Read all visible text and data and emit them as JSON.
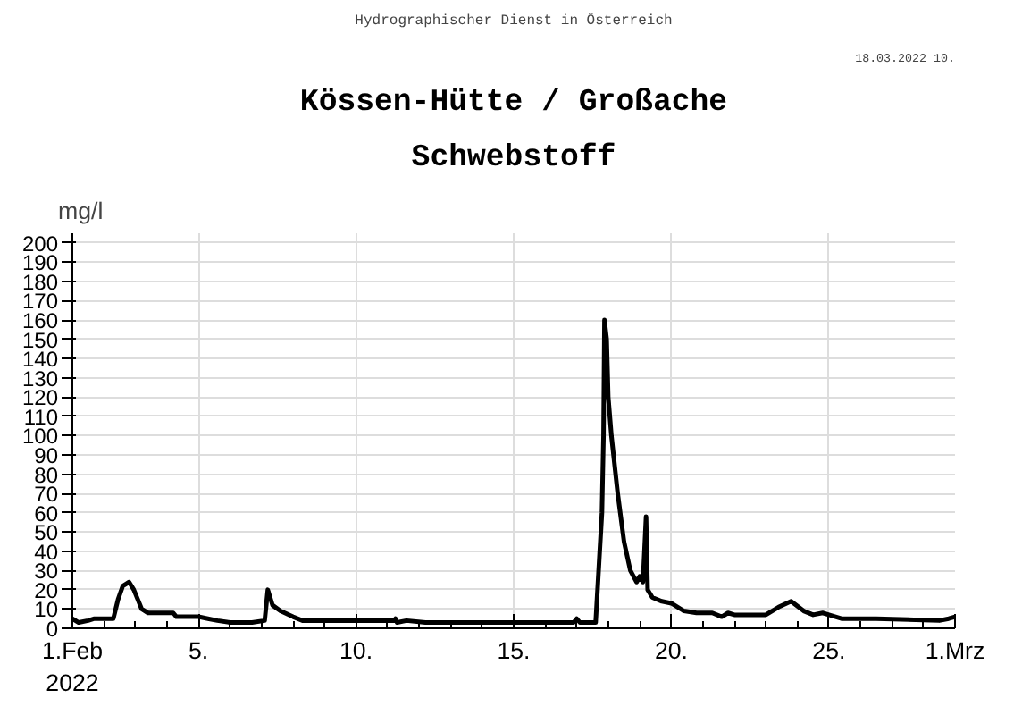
{
  "chart_data": {
    "type": "line",
    "title": "Kössen-Hütte / Großache",
    "subtitle": "Schwebstoff",
    "ylabel": "mg/l",
    "annotations": [
      "Hydrographischer Dienst in Österreich",
      "18.03.2022 10."
    ],
    "x": [
      "2022-02-01T00:00",
      "2022-02-01T04:48",
      "2022-02-01T12:00",
      "2022-02-01T16:48",
      "2022-02-02T07:12",
      "2022-02-02T10:48",
      "2022-02-02T14:24",
      "2022-02-02T19:12",
      "2022-02-02T22:48",
      "2022-02-03T04:48",
      "2022-02-03T09:36",
      "2022-02-04T04:48",
      "2022-02-04T07:12",
      "2022-02-05T00:00",
      "2022-02-05T07:12",
      "2022-02-05T14:24",
      "2022-02-06T00:00",
      "2022-02-06T16:48",
      "2022-02-07T02:24",
      "2022-02-07T04:48",
      "2022-02-07T08:24",
      "2022-02-07T14:24",
      "2022-02-08T00:00",
      "2022-02-08T07:12",
      "2022-02-11T04:48",
      "2022-02-11T06:00",
      "2022-02-11T07:12",
      "2022-02-11T14:24",
      "2022-02-12T04:48",
      "2022-02-16T00:00",
      "2022-02-16T21:36",
      "2022-02-17T00:00",
      "2022-02-17T02:24",
      "2022-02-17T14:24",
      "2022-02-17T19:12",
      "2022-02-17T20:24",
      "2022-02-17T21:07",
      "2022-02-17T22:48",
      "2022-02-18T00:00",
      "2022-02-18T02:24",
      "2022-02-18T07:12",
      "2022-02-18T12:00",
      "2022-02-18T16:48",
      "2022-02-18T21:36",
      "2022-02-19T00:00",
      "2022-02-19T02:24",
      "2022-02-19T04:48",
      "2022-02-19T06:00",
      "2022-02-19T09:36",
      "2022-02-19T16:48",
      "2022-02-20T00:00",
      "2022-02-20T09:36",
      "2022-02-20T19:12",
      "2022-02-21T07:12",
      "2022-02-21T14:24",
      "2022-02-21T19:12",
      "2022-02-22T00:00",
      "2022-02-23T00:00",
      "2022-02-23T09:36",
      "2022-02-23T19:12",
      "2022-02-24T04:48",
      "2022-02-24T12:00",
      "2022-02-24T19:12",
      "2022-02-25T00:00",
      "2022-02-25T09:36",
      "2022-02-26T12:00",
      "2022-02-28T12:00",
      "2022-02-28T19:12",
      "2022-03-01T00:00"
    ],
    "series": [
      {
        "color": "#000000",
        "values": [
          5,
          3,
          4,
          5,
          5,
          15,
          22,
          24,
          20,
          10,
          8,
          8,
          6,
          6,
          5,
          4,
          3,
          3,
          4,
          20,
          12,
          9,
          6,
          4,
          4,
          5,
          3,
          4,
          3,
          3,
          3,
          5,
          3,
          3,
          60,
          100,
          160,
          150,
          120,
          100,
          70,
          45,
          30,
          24,
          27,
          24,
          58,
          20,
          16,
          14,
          13,
          9,
          8,
          8,
          6,
          8,
          7,
          7,
          11,
          14,
          9,
          7,
          8,
          7,
          5,
          5,
          4,
          5,
          6
        ]
      }
    ],
    "xlim": [
      "2022-02-01",
      "2022-03-01"
    ],
    "xticks": [
      {
        "value": "2022-02-01",
        "label": "1.Feb\n2022"
      },
      {
        "value": "2022-02-05",
        "label": "5."
      },
      {
        "value": "2022-02-10",
        "label": "10."
      },
      {
        "value": "2022-02-15",
        "label": "15."
      },
      {
        "value": "2022-02-20",
        "label": "20."
      },
      {
        "value": "2022-02-25",
        "label": "25."
      },
      {
        "value": "2022-03-01",
        "label": "1.Mrz"
      }
    ],
    "ylim": [
      0,
      205
    ],
    "yticks": [
      0,
      10,
      20,
      30,
      40,
      50,
      60,
      70,
      80,
      90,
      100,
      110,
      120,
      130,
      140,
      150,
      160,
      170,
      180,
      190,
      200
    ],
    "grid": true,
    "marker": "none",
    "line_style": "solid"
  }
}
